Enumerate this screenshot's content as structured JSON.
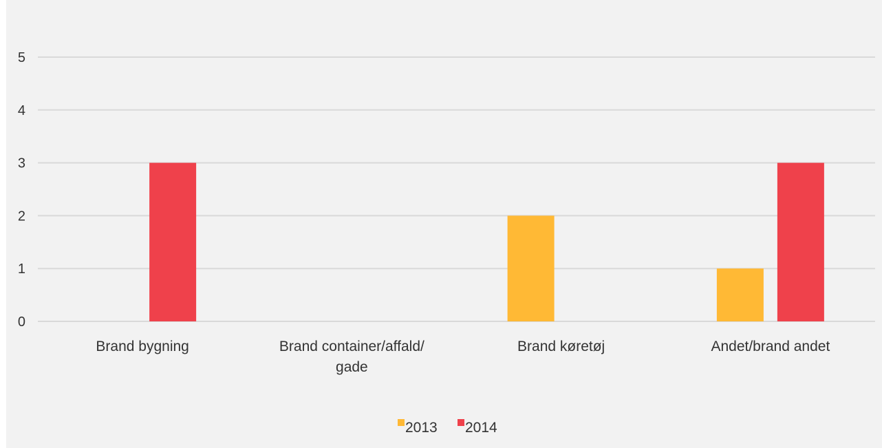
{
  "chart_data": {
    "type": "bar",
    "title": "",
    "xlabel": "",
    "ylabel": "",
    "ylim": [
      0,
      5
    ],
    "yticks": [
      0,
      1,
      2,
      3,
      4,
      5
    ],
    "grid": true,
    "legend_position": "bottom",
    "categories": [
      [
        "Brand bygning"
      ],
      [
        "Brand container/affald/",
        "gade"
      ],
      [
        "Brand køretøj"
      ],
      [
        "Andet/brand andet"
      ]
    ],
    "series": [
      {
        "name": "2013",
        "color": "#ffb935",
        "values": [
          0,
          0,
          2,
          1
        ]
      },
      {
        "name": "2014",
        "color": "#ef414b",
        "values": [
          3,
          0,
          0,
          3
        ]
      }
    ]
  }
}
